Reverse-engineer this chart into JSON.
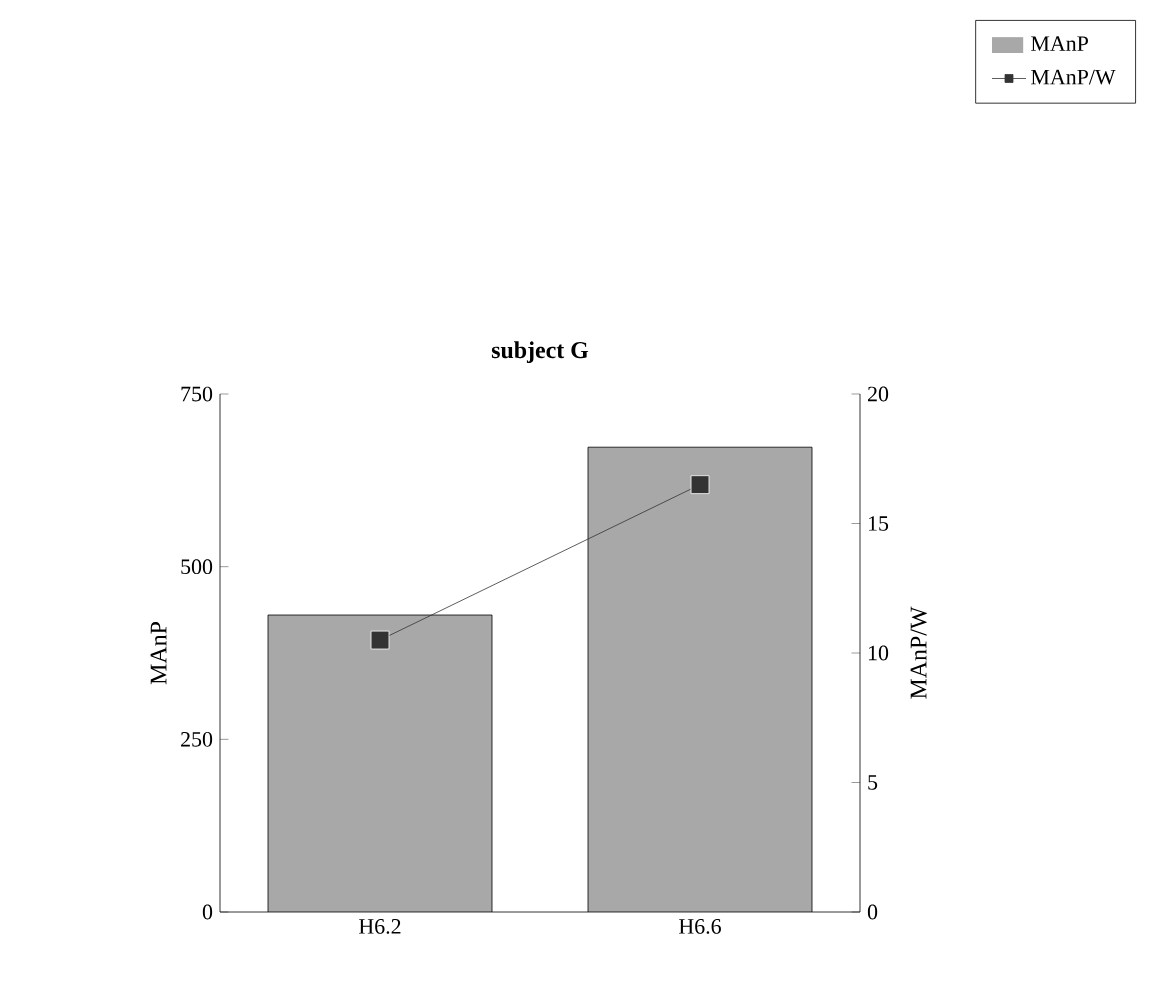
{
  "chart_data": {
    "type": "bar",
    "title": "subject G",
    "ylabel": "MAnP",
    "y2label": "MAnP/W",
    "categories": [
      "H6.2",
      "H6.6"
    ],
    "series": [
      {
        "name": "MAnP",
        "color": "#a8a8a8",
        "values": [
          430,
          673
        ]
      },
      {
        "name": "MAnP/W",
        "type": "line",
        "axis": "y2",
        "color": "#333333",
        "values": [
          10.5,
          16.5
        ],
        "marker": "square"
      }
    ],
    "ylim": [
      0,
      750
    ],
    "yticks": [
      0,
      250,
      500,
      750
    ],
    "y2lim": [
      0,
      20
    ],
    "y2ticks": [
      0,
      5,
      10,
      15,
      20
    ],
    "legend": "top right",
    "grid": false
  }
}
